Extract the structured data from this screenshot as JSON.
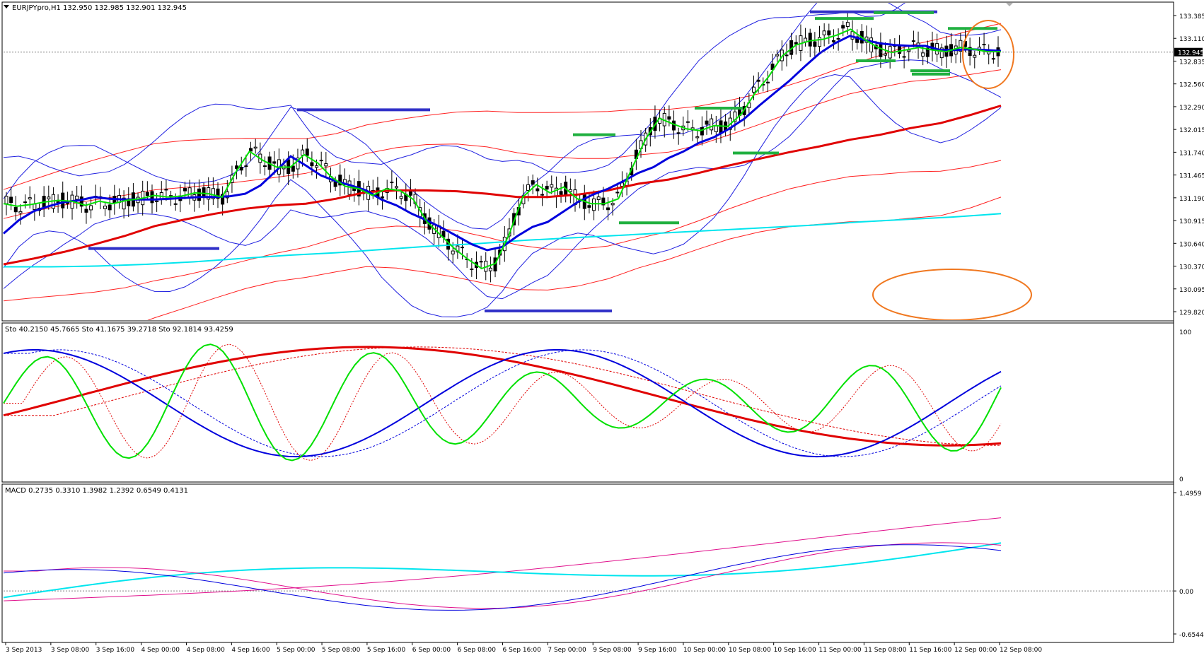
{
  "chart_data": {
    "type": "line",
    "symbol_header": {
      "text": "EURJPYpro,H1  132.950 132.985 132.901 132.945",
      "symbol": "EURJPYpro",
      "timeframe": "H1",
      "open": 132.95,
      "high": 132.985,
      "low": 132.901,
      "close": 132.945
    },
    "price_panel": {
      "y_ticks": [
        "133.385",
        "133.110",
        "132.835",
        "132.560",
        "132.290",
        "132.015",
        "131.740",
        "131.465",
        "131.190",
        "130.915",
        "130.640",
        "130.370",
        "130.095",
        "129.820"
      ],
      "ylim": [
        129.77,
        133.5
      ],
      "current_price_label": "132.945",
      "current_price": 132.945,
      "colors": {
        "ema_fast": "#00e000",
        "ema_mid": "#0000dd",
        "ema_slow": "#e00000",
        "ma_long": "#00e5ee",
        "bollinger": "#2020e0",
        "envelope": "#ff2020",
        "candles": "#000000",
        "level_blue": "#3030c8",
        "level_green": "#20b040",
        "annotation": "#f07820"
      },
      "series": [
        {
          "id": "close",
          "values": [
            130.95,
            130.98,
            131.02,
            131.06,
            131.1,
            131.14,
            131.18,
            131.21,
            131.25,
            131.28,
            131.3,
            131.32,
            131.33,
            131.33,
            131.33,
            131.32,
            131.28,
            131.22,
            131.14,
            131.05,
            130.94,
            130.83,
            130.72,
            130.62,
            130.54,
            130.48,
            130.45,
            130.44,
            130.45,
            130.48,
            130.53,
            130.6,
            130.68,
            130.77,
            130.86,
            130.95,
            131.04,
            131.12,
            131.2,
            131.27,
            131.34,
            131.41,
            131.47,
            131.52,
            131.57,
            131.61,
            131.64,
            131.67,
            131.69,
            131.71,
            131.72,
            131.73,
            131.74,
            131.75,
            131.76,
            131.78,
            131.8,
            131.83,
            131.87,
            131.91,
            131.95,
            132.0,
            132.06,
            132.12,
            132.18,
            132.24,
            132.3,
            132.36,
            132.42,
            132.48,
            132.54,
            132.6,
            132.66,
            132.71,
            132.77,
            132.82,
            132.87,
            132.92,
            132.96,
            133.0,
            133.04,
            133.07,
            133.1,
            133.12,
            133.13,
            133.14,
            133.14,
            133.13,
            133.12,
            133.1,
            133.08,
            133.05,
            133.02,
            133.0,
            132.98,
            132.96,
            132.95,
            132.95
          ]
        },
        {
          "id": "ema_fast",
          "values": [
            131.12,
            131.09,
            131.11,
            131.14,
            131.16,
            131.15,
            131.1,
            131.15,
            131.12,
            131.16,
            131.18,
            131.22,
            131.2,
            131.21,
            131.25,
            131.24,
            131.2,
            131.5,
            131.75,
            131.64,
            131.56,
            131.56,
            131.71,
            131.61,
            131.44,
            131.33,
            131.3,
            131.22,
            131.3,
            131.28,
            131.17,
            130.9,
            130.74,
            130.58,
            130.45,
            130.34,
            130.4,
            130.75,
            131.2,
            131.35,
            131.25,
            131.32,
            131.18,
            131.12,
            131.12,
            131.18,
            131.55,
            131.9,
            132.15,
            132.08,
            132.02,
            132.0,
            132.06,
            132.05,
            132.2,
            132.45,
            132.65,
            132.9,
            133.03,
            133.08,
            133.1,
            133.15,
            133.22,
            133.1,
            133.0,
            132.94,
            132.97,
            133.0,
            132.97,
            132.95,
            133.0,
            132.98,
            132.95,
            132.95
          ]
        },
        {
          "id": "ema_mid",
          "values": [
            130.76,
            130.92,
            131.03,
            131.09,
            131.14,
            131.16,
            131.2,
            131.18,
            131.17,
            131.17,
            131.17,
            131.18,
            131.19,
            131.2,
            131.2,
            131.21,
            131.24,
            131.34,
            131.51,
            131.69,
            131.58,
            131.46,
            131.39,
            131.34,
            131.28,
            131.17,
            131.1,
            131.0,
            130.92,
            130.83,
            130.73,
            130.63,
            130.56,
            130.6,
            130.73,
            130.84,
            130.9,
            131.02,
            131.14,
            131.23,
            131.3,
            131.39,
            131.49,
            131.56,
            131.67,
            131.75,
            131.85,
            131.92,
            132.02,
            132.14,
            132.3,
            132.45,
            132.6,
            132.77,
            132.93,
            133.05,
            133.14,
            133.09,
            133.05,
            133.03,
            133.02,
            133.02,
            132.97,
            132.97,
            132.98,
            132.97,
            132.96
          ]
        },
        {
          "id": "ema_slow",
          "values": [
            130.39,
            130.46,
            130.54,
            130.63,
            130.73,
            130.85,
            130.93,
            131.0,
            131.06,
            131.1,
            131.12,
            131.18,
            131.26,
            131.28,
            131.28,
            131.27,
            131.24,
            131.2,
            131.2,
            131.23,
            131.28,
            131.36,
            131.41,
            131.49,
            131.58,
            131.66,
            131.74,
            131.81,
            131.89,
            131.95,
            132.03,
            132.09,
            132.19,
            132.3
          ]
        },
        {
          "id": "ma_long",
          "values": [
            130.36,
            130.36,
            130.37,
            130.39,
            130.42,
            130.46,
            130.5,
            130.53,
            130.57,
            130.61,
            130.64,
            130.68,
            130.71,
            130.74,
            130.77,
            130.8,
            130.83,
            130.86,
            130.9,
            130.93,
            130.96,
            131.0
          ]
        }
      ],
      "level_lines": [
        {
          "color": "blue",
          "price": 130.58
        },
        {
          "color": "blue",
          "price": 132.25
        },
        {
          "color": "blue",
          "price": 129.83
        },
        {
          "color": "blue",
          "price": 133.43
        },
        {
          "color": "green",
          "price": 131.95
        },
        {
          "color": "green",
          "price": 130.89
        },
        {
          "color": "green",
          "price": 132.27
        },
        {
          "color": "green",
          "price": 131.73
        },
        {
          "color": "green",
          "price": 133.35
        },
        {
          "color": "green",
          "price": 132.84
        },
        {
          "color": "green",
          "price": 133.42
        },
        {
          "color": "green",
          "price": 132.72
        },
        {
          "color": "green",
          "price": 133.23
        },
        {
          "color": "green",
          "price": 132.68
        }
      ]
    },
    "stochastic_panel": {
      "label": "Sto 40.2150 45.7665  Sto 41.1675 39.2718  Sto 92.1814 93.4259",
      "y_ticks": [
        "100",
        "0"
      ],
      "ylim": [
        0,
        100
      ]
    },
    "macd_panel": {
      "label": "MACD 0.2735 0.3310 1.3982 1.2392 0.6549 0.4131",
      "y_ticks": [
        "1.4959",
        "0.00",
        "-0.6544"
      ],
      "ylim": [
        -0.6544,
        1.4959
      ]
    },
    "x_ticks": [
      "3 Sep 2013",
      "3 Sep 08:00",
      "3 Sep 16:00",
      "4 Sep 00:00",
      "4 Sep 08:00",
      "4 Sep 16:00",
      "5 Sep 00:00",
      "5 Sep 08:00",
      "5 Sep 16:00",
      "6 Sep 00:00",
      "6 Sep 08:00",
      "6 Sep 16:00",
      "7 Sep 00:00",
      "9 Sep 08:00",
      "9 Sep 16:00",
      "10 Sep 00:00",
      "10 Sep 08:00",
      "10 Sep 16:00",
      "11 Sep 00:00",
      "11 Sep 08:00",
      "11 Sep 16:00",
      "12 Sep 00:00",
      "12 Sep 08:00"
    ],
    "grid": false,
    "legend": "none"
  }
}
